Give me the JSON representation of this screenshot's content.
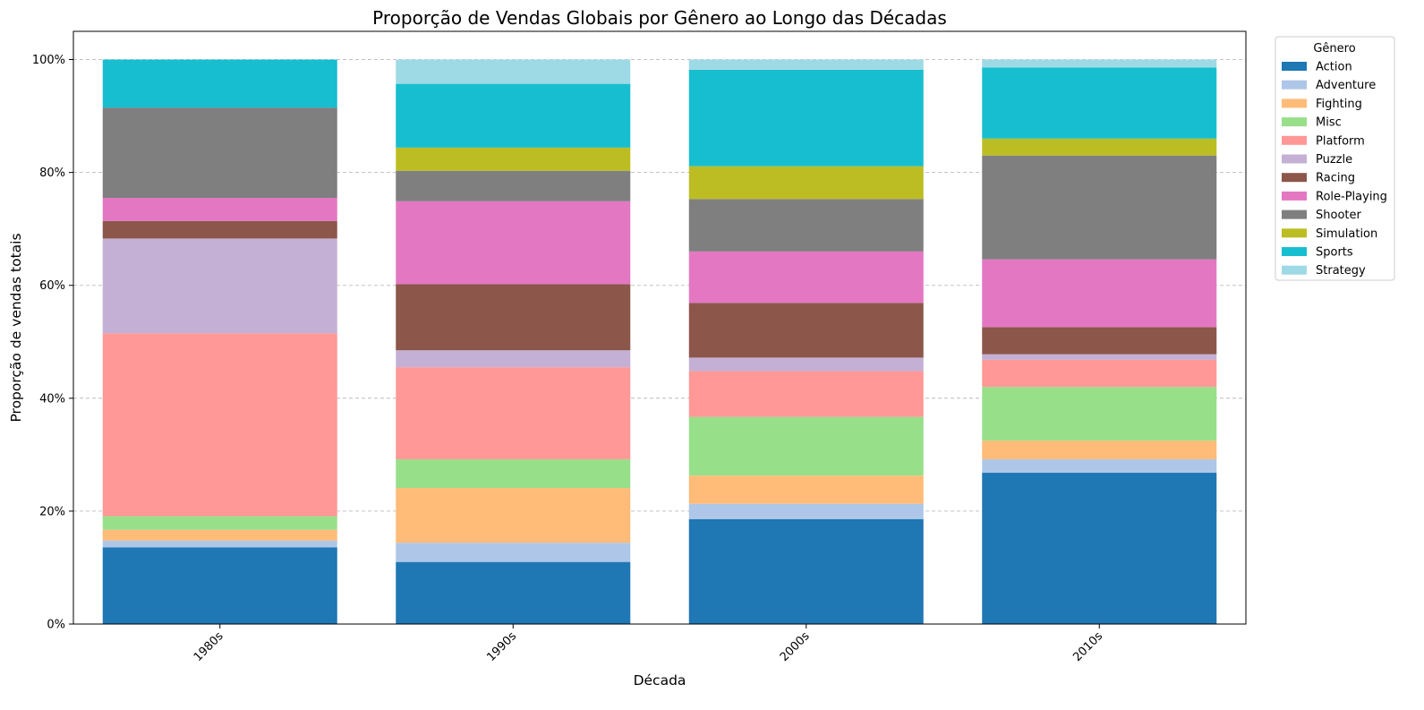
{
  "chart_data": {
    "type": "bar",
    "stacked": true,
    "title": "Proporção de Vendas Globais por Gênero ao Longo das Décadas",
    "xlabel": "Década",
    "ylabel": "Proporção de vendas totais",
    "categories": [
      "1980s",
      "1990s",
      "2000s",
      "2010s"
    ],
    "ylim": [
      0,
      1.05
    ],
    "y_ticks": [
      0,
      0.2,
      0.4,
      0.6,
      0.8,
      1.0
    ],
    "y_tick_labels": [
      "0%",
      "20%",
      "40%",
      "60%",
      "80%",
      "100%"
    ],
    "grid": "y-dashed",
    "legend": {
      "title": "Gênero",
      "placement": "outside-right"
    },
    "series": [
      {
        "name": "Action",
        "color": "#1f77b4",
        "values": [
          0.136,
          0.11,
          0.186,
          0.268
        ]
      },
      {
        "name": "Adventure",
        "color": "#aec7e8",
        "values": [
          0.012,
          0.034,
          0.027,
          0.024
        ]
      },
      {
        "name": "Fighting",
        "color": "#ffbb78",
        "values": [
          0.019,
          0.097,
          0.05,
          0.033
        ]
      },
      {
        "name": "Misc",
        "color": "#98df8a",
        "values": [
          0.024,
          0.051,
          0.104,
          0.095
        ]
      },
      {
        "name": "Platform",
        "color": "#ff9896",
        "values": [
          0.324,
          0.163,
          0.081,
          0.048
        ]
      },
      {
        "name": "Puzzle",
        "color": "#c5b0d5",
        "values": [
          0.168,
          0.03,
          0.024,
          0.01
        ]
      },
      {
        "name": "Racing",
        "color": "#8c564b",
        "values": [
          0.031,
          0.117,
          0.097,
          0.048
        ]
      },
      {
        "name": "Role-Playing",
        "color": "#e377c2",
        "values": [
          0.041,
          0.147,
          0.091,
          0.12
        ]
      },
      {
        "name": "Shooter",
        "color": "#7f7f7f",
        "values": [
          0.16,
          0.054,
          0.093,
          0.184
        ]
      },
      {
        "name": "Simulation",
        "color": "#bcbd22",
        "values": [
          0.0,
          0.041,
          0.058,
          0.03
        ]
      },
      {
        "name": "Sports",
        "color": "#17becf",
        "values": [
          0.085,
          0.113,
          0.171,
          0.126
        ]
      },
      {
        "name": "Strategy",
        "color": "#9edae5",
        "values": [
          0.0,
          0.043,
          0.018,
          0.014
        ]
      }
    ]
  }
}
